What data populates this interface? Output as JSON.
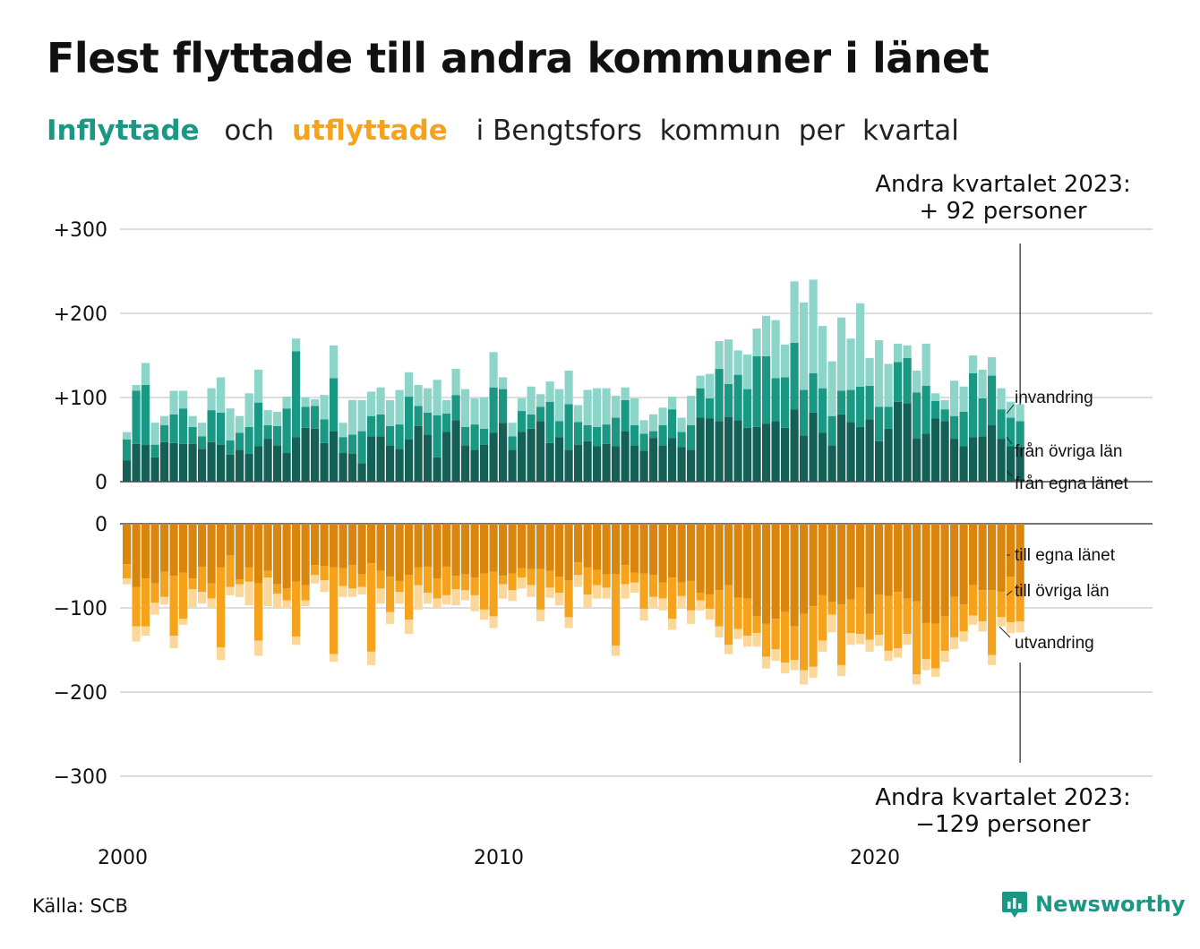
{
  "title": "Flest flyttade till andra kommuner i länet",
  "subtitle": {
    "in_word": "Inflyttade",
    "mid1": "och",
    "out_word": "utflyttade",
    "rest": "i Bengtsfors  kommun  per  kvartal"
  },
  "source": "Källa: SCB",
  "brand": "Newsworthy",
  "colors": {
    "in_own": "#145f56",
    "in_other": "#1a9884",
    "in_abroad": "#8ed5c9",
    "out_own": "#d9860e",
    "out_other": "#f5a31c",
    "out_abroad": "#fbd79a",
    "grid": "#dddddd",
    "axis": "#222222"
  },
  "chart_data": [
    {
      "type": "bar",
      "stacked": true,
      "title": "Inflyttade",
      "x_start": "2000 Q1",
      "period": "quarter",
      "y_ticks": [
        "0",
        "+100",
        "+200",
        "+300"
      ],
      "y_tick_values": [
        0,
        100,
        200,
        300
      ],
      "ylim": [
        0,
        300
      ],
      "x_ticks": [
        "2000",
        "2010",
        "2020"
      ],
      "annotation": [
        "Andra kvartalet 2023:",
        "+ 92 personer"
      ],
      "series": [
        {
          "name": "från egna länet",
          "values": [
            25,
            45,
            44,
            29,
            47,
            46,
            45,
            45,
            39,
            47,
            44,
            32,
            38,
            33,
            42,
            51,
            43,
            34,
            53,
            64,
            63,
            46,
            60,
            34,
            33,
            22,
            54,
            54,
            43,
            39,
            50,
            66,
            56,
            29,
            59,
            73,
            43,
            38,
            44,
            58,
            70,
            38,
            59,
            63,
            72,
            46,
            53,
            38,
            44,
            48,
            42,
            45,
            42,
            60,
            43,
            37,
            52,
            43,
            52,
            41,
            38,
            76,
            75,
            72,
            77,
            73,
            64,
            65,
            69,
            72,
            64,
            86,
            55,
            82,
            58,
            43,
            80,
            71,
            65,
            74,
            48,
            63,
            95,
            93,
            51,
            57,
            75,
            72,
            51,
            42,
            53,
            54,
            67,
            51,
            42,
            40
          ]
        },
        {
          "name": "från övriga län",
          "values": [
            25,
            63,
            71,
            15,
            20,
            34,
            42,
            20,
            15,
            38,
            38,
            17,
            20,
            32,
            52,
            16,
            23,
            53,
            102,
            25,
            27,
            28,
            63,
            19,
            23,
            38,
            24,
            26,
            23,
            29,
            51,
            24,
            26,
            50,
            22,
            30,
            22,
            30,
            19,
            54,
            40,
            16,
            25,
            17,
            17,
            49,
            19,
            54,
            27,
            19,
            23,
            23,
            34,
            37,
            24,
            20,
            8,
            24,
            34,
            18,
            29,
            35,
            24,
            62,
            39,
            54,
            46,
            84,
            80,
            51,
            60,
            79,
            54,
            47,
            53,
            35,
            28,
            38,
            48,
            40,
            41,
            26,
            47,
            54,
            55,
            57,
            21,
            14,
            27,
            41,
            76,
            45,
            59,
            35,
            34,
            32
          ]
        },
        {
          "name": "invandring",
          "values": [
            9,
            7,
            26,
            26,
            11,
            28,
            21,
            13,
            16,
            26,
            42,
            38,
            20,
            40,
            39,
            18,
            17,
            14,
            15,
            11,
            8,
            29,
            39,
            17,
            41,
            37,
            29,
            32,
            31,
            41,
            29,
            25,
            29,
            42,
            16,
            31,
            45,
            31,
            37,
            42,
            14,
            16,
            15,
            33,
            15,
            24,
            38,
            40,
            20,
            42,
            46,
            43,
            26,
            15,
            32,
            16,
            20,
            21,
            15,
            17,
            35,
            15,
            29,
            33,
            53,
            29,
            41,
            33,
            48,
            69,
            39,
            73,
            104,
            111,
            74,
            65,
            87,
            61,
            99,
            33,
            79,
            51,
            22,
            15,
            26,
            50,
            9,
            11,
            42,
            30,
            21,
            34,
            22,
            25,
            19,
            20
          ]
        }
      ]
    },
    {
      "type": "bar",
      "stacked": true,
      "title": "Utflyttade",
      "x_start": "2000 Q1",
      "period": "quarter",
      "y_ticks": [
        "0",
        "−100",
        "−200",
        "−300"
      ],
      "y_tick_values": [
        0,
        -100,
        -200,
        -300
      ],
      "ylim": [
        -300,
        0
      ],
      "annotation": [
        "Andra kvartalet 2023:",
        "−129 personer"
      ],
      "series": [
        {
          "name": "till egna länet",
          "values": [
            -48,
            -75,
            -65,
            -71,
            -57,
            -62,
            -58,
            -65,
            -51,
            -71,
            -52,
            -38,
            -66,
            -52,
            -71,
            -56,
            -72,
            -77,
            -69,
            -73,
            -49,
            -50,
            -52,
            -53,
            -49,
            -60,
            -47,
            -56,
            -63,
            -68,
            -61,
            -52,
            -51,
            -65,
            -51,
            -62,
            -60,
            -64,
            -59,
            -57,
            -62,
            -59,
            -53,
            -54,
            -54,
            -56,
            -63,
            -67,
            -46,
            -52,
            -55,
            -60,
            -60,
            -49,
            -58,
            -59,
            -61,
            -70,
            -64,
            -70,
            -68,
            -82,
            -84,
            -79,
            -73,
            -88,
            -89,
            -110,
            -119,
            -113,
            -105,
            -122,
            -107,
            -98,
            -85,
            -93,
            -96,
            -90,
            -76,
            -107,
            -84,
            -86,
            -81,
            -89,
            -92,
            -118,
            -119,
            -110,
            -87,
            -96,
            -73,
            -79,
            -79,
            -81,
            -63,
            -87
          ]
        },
        {
          "name": "till övriga län",
          "values": [
            -17,
            -47,
            -57,
            -23,
            -30,
            -71,
            -55,
            -13,
            -30,
            -18,
            -95,
            -37,
            -6,
            -17,
            -68,
            -8,
            -11,
            -14,
            -65,
            -18,
            -12,
            -17,
            -103,
            -21,
            -28,
            -15,
            -105,
            -21,
            -42,
            -13,
            -53,
            -21,
            -31,
            -24,
            -34,
            -16,
            -19,
            -21,
            -43,
            -53,
            -10,
            -20,
            -11,
            -19,
            -48,
            -20,
            -19,
            -44,
            -15,
            -32,
            -18,
            -16,
            -85,
            -23,
            -12,
            -42,
            -26,
            -19,
            -49,
            -16,
            -35,
            -9,
            -17,
            -43,
            -71,
            -37,
            -44,
            -20,
            -39,
            -36,
            -60,
            -40,
            -67,
            -72,
            -54,
            -15,
            -72,
            -40,
            -55,
            -31,
            -48,
            -65,
            -67,
            -42,
            -87,
            -43,
            -53,
            -41,
            -48,
            -32,
            -36,
            -37,
            -77,
            -30,
            -54,
            -29
          ]
        },
        {
          "name": "utvandring",
          "values": [
            -7,
            -18,
            -11,
            -14,
            -9,
            -15,
            -7,
            -21,
            -14,
            -11,
            -15,
            -10,
            -15,
            -28,
            -18,
            -34,
            -18,
            -10,
            -10,
            -7,
            -10,
            -14,
            -9,
            -13,
            -10,
            -9,
            -16,
            -18,
            -14,
            -14,
            -17,
            -29,
            -13,
            -12,
            -11,
            -19,
            -12,
            -19,
            -12,
            -14,
            -17,
            -13,
            -13,
            -14,
            -14,
            -12,
            -15,
            -13,
            -14,
            -15,
            -16,
            -13,
            -12,
            -17,
            -12,
            -14,
            -13,
            -14,
            -13,
            -15,
            -16,
            -12,
            -13,
            -13,
            -11,
            -12,
            -13,
            -16,
            -14,
            -14,
            -13,
            -12,
            -17,
            -13,
            -13,
            -21,
            -13,
            -14,
            -12,
            -14,
            -13,
            -12,
            -11,
            -13,
            -12,
            -13,
            -10,
            -13,
            -14,
            -12,
            -11,
            -12,
            -12,
            -11,
            -13,
            -13
          ]
        }
      ]
    }
  ],
  "labels_in": [
    "invandring",
    "från övriga län",
    "från egna länet"
  ],
  "labels_out": [
    "till egna länet",
    "till övriga län",
    "utvandring"
  ]
}
